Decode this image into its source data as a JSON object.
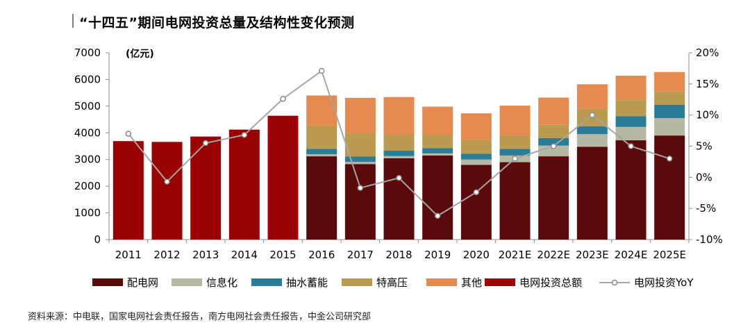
{
  "title": "“十四五”期间电网投资总量及结构性变化预测",
  "source": "资料来源：中电联，国家电网社会责任报告，南方电网社会责任报告，中金公司研究部",
  "chart_data": {
    "type": "bar",
    "unit_label": "(亿元)",
    "categories": [
      "2011",
      "2012",
      "2013",
      "2014",
      "2015",
      "2016",
      "2017",
      "2018",
      "2019",
      "2020",
      "2021E",
      "2022E",
      "2023E",
      "2024E",
      "2025E"
    ],
    "ylim": [
      0,
      7000
    ],
    "yticks": [
      "0",
      "1000",
      "2000",
      "3000",
      "4000",
      "5000",
      "6000",
      "7000"
    ],
    "y2lim": [
      -10,
      20
    ],
    "y2ticks": [
      "-10%",
      "-5%",
      "0%",
      "5%",
      "10%",
      "15%",
      "20%"
    ],
    "grid": false,
    "legend_position": "bottom",
    "stacked_series": [
      {
        "name": "配电网",
        "color": "#5a0a0a",
        "values": [
          null,
          null,
          null,
          null,
          null,
          3120,
          2830,
          3050,
          3150,
          2800,
          2900,
          3120,
          3480,
          3720,
          3900
        ]
      },
      {
        "name": "信息化",
        "color": "#b6b8a3",
        "values": [
          null,
          null,
          null,
          null,
          null,
          80,
          80,
          80,
          80,
          200,
          250,
          400,
          470,
          500,
          650
        ]
      },
      {
        "name": "抽水蓄能",
        "color": "#2b7c96",
        "values": [
          null,
          null,
          null,
          null,
          null,
          200,
          200,
          200,
          200,
          220,
          250,
          280,
          300,
          400,
          500
        ]
      },
      {
        "name": "特高压",
        "color": "#b99a4e",
        "values": [
          null,
          null,
          null,
          null,
          null,
          870,
          870,
          600,
          500,
          520,
          500,
          500,
          650,
          600,
          500
        ]
      },
      {
        "name": "其他",
        "color": "#e6894f",
        "values": [
          null,
          null,
          null,
          null,
          null,
          1130,
          1330,
          1410,
          1050,
          990,
          1120,
          1020,
          920,
          920,
          730
        ]
      }
    ],
    "total_series": {
      "name": "电网投资总额",
      "color": "#9a0202",
      "values": [
        3690,
        3660,
        3860,
        4120,
        4640,
        null,
        null,
        null,
        null,
        null,
        null,
        null,
        null,
        null,
        null
      ]
    },
    "line_series": {
      "name": "电网投资YoY",
      "color": "#a6a6a6",
      "axis": "right",
      "values": [
        7.0,
        -0.7,
        5.5,
        6.8,
        12.6,
        17.1,
        -1.7,
        -0.1,
        -6.2,
        -2.4,
        3.0,
        5.0,
        10.0,
        5.0,
        3.0
      ]
    }
  }
}
